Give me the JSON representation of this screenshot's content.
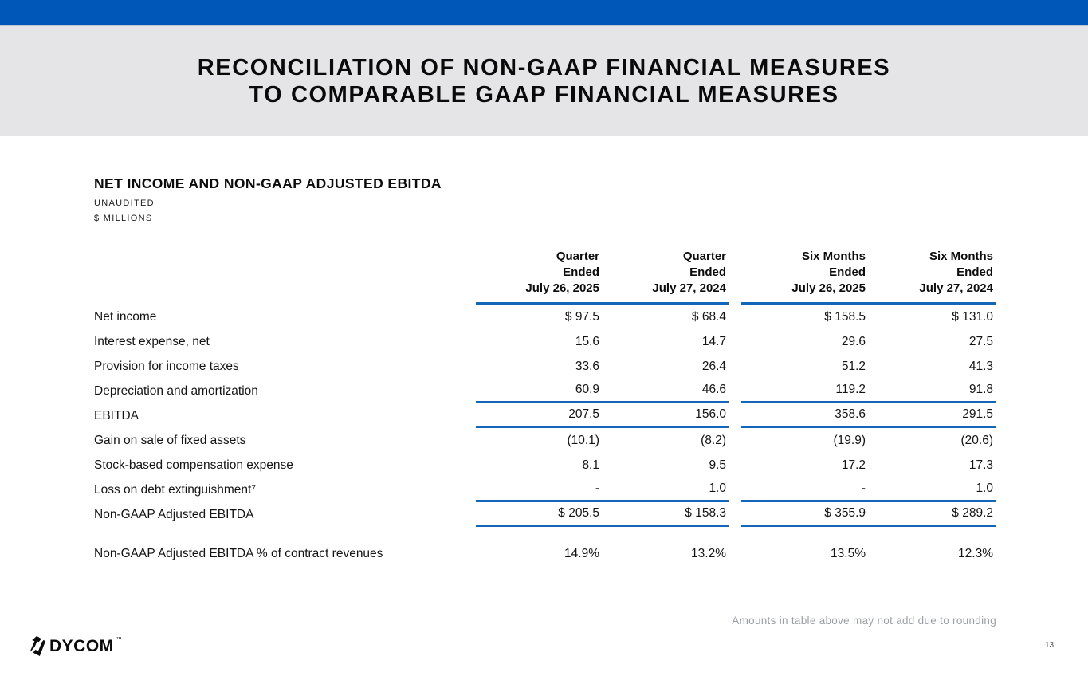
{
  "colors": {
    "top_bar_blue": "#0157B8",
    "rule_blue": "#1467B8",
    "band_gray": "#E5E5E7",
    "footnote_gray": "#9BA0A6"
  },
  "header": {
    "title_line1": "RECONCILIATION OF NON-GAAP FINANCIAL MEASURES",
    "title_line2": "TO COMPARABLE GAAP FINANCIAL MEASURES"
  },
  "section": {
    "heading": "NET INCOME AND NON-GAAP ADJUSTED EBITDA",
    "subnote1": "UNAUDITED",
    "subnote2": "$ MILLIONS"
  },
  "table": {
    "columns": [
      {
        "lines": [
          "Quarter",
          "Ended",
          "July 26, 2025"
        ]
      },
      {
        "lines": [
          "Quarter",
          "Ended",
          "July 27, 2024"
        ]
      },
      {
        "lines": [
          "Six Months",
          "Ended",
          "July 26, 2025"
        ]
      },
      {
        "lines": [
          "Six Months",
          "Ended",
          "July 27, 2024"
        ]
      }
    ],
    "rows": [
      {
        "label": "Net income",
        "values": [
          "$ 97.5",
          "$ 68.4",
          "$ 158.5",
          "$ 131.0"
        ],
        "underline": false
      },
      {
        "label": "Interest expense, net",
        "values": [
          "15.6",
          "14.7",
          "29.6",
          "27.5"
        ],
        "underline": false
      },
      {
        "label": "Provision for income taxes",
        "values": [
          "33.6",
          "26.4",
          "51.2",
          "41.3"
        ],
        "underline": false
      },
      {
        "label": "Depreciation and amortization",
        "values": [
          "60.9",
          "46.6",
          "119.2",
          "91.8"
        ],
        "underline": true
      },
      {
        "label": "EBITDA",
        "values": [
          "207.5",
          "156.0",
          "358.6",
          "291.5"
        ],
        "underline": true
      },
      {
        "label": "Gain on sale of fixed assets",
        "values": [
          "(10.1)",
          "(8.2)",
          "(19.9)",
          "(20.6)"
        ],
        "underline": false
      },
      {
        "label": "Stock-based compensation expense",
        "values": [
          "8.1",
          "9.5",
          "17.2",
          "17.3"
        ],
        "underline": false
      },
      {
        "label": "Loss on debt extinguishment⁷",
        "values": [
          "-",
          "1.0",
          "-",
          "1.0"
        ],
        "underline": true
      },
      {
        "label": "Non-GAAP Adjusted EBITDA",
        "values": [
          "$ 205.5",
          "$ 158.3",
          "$ 355.9",
          "$ 289.2"
        ],
        "underline": true
      }
    ],
    "percent_row": {
      "label": "Non-GAAP Adjusted EBITDA % of contract revenues",
      "values": [
        "14.9%",
        "13.2%",
        "13.5%",
        "12.3%"
      ]
    }
  },
  "footer": {
    "footnote": "Amounts in table above may not add due to rounding",
    "logo_text": "DYCOM",
    "trademark": "™",
    "page_number": "13"
  }
}
